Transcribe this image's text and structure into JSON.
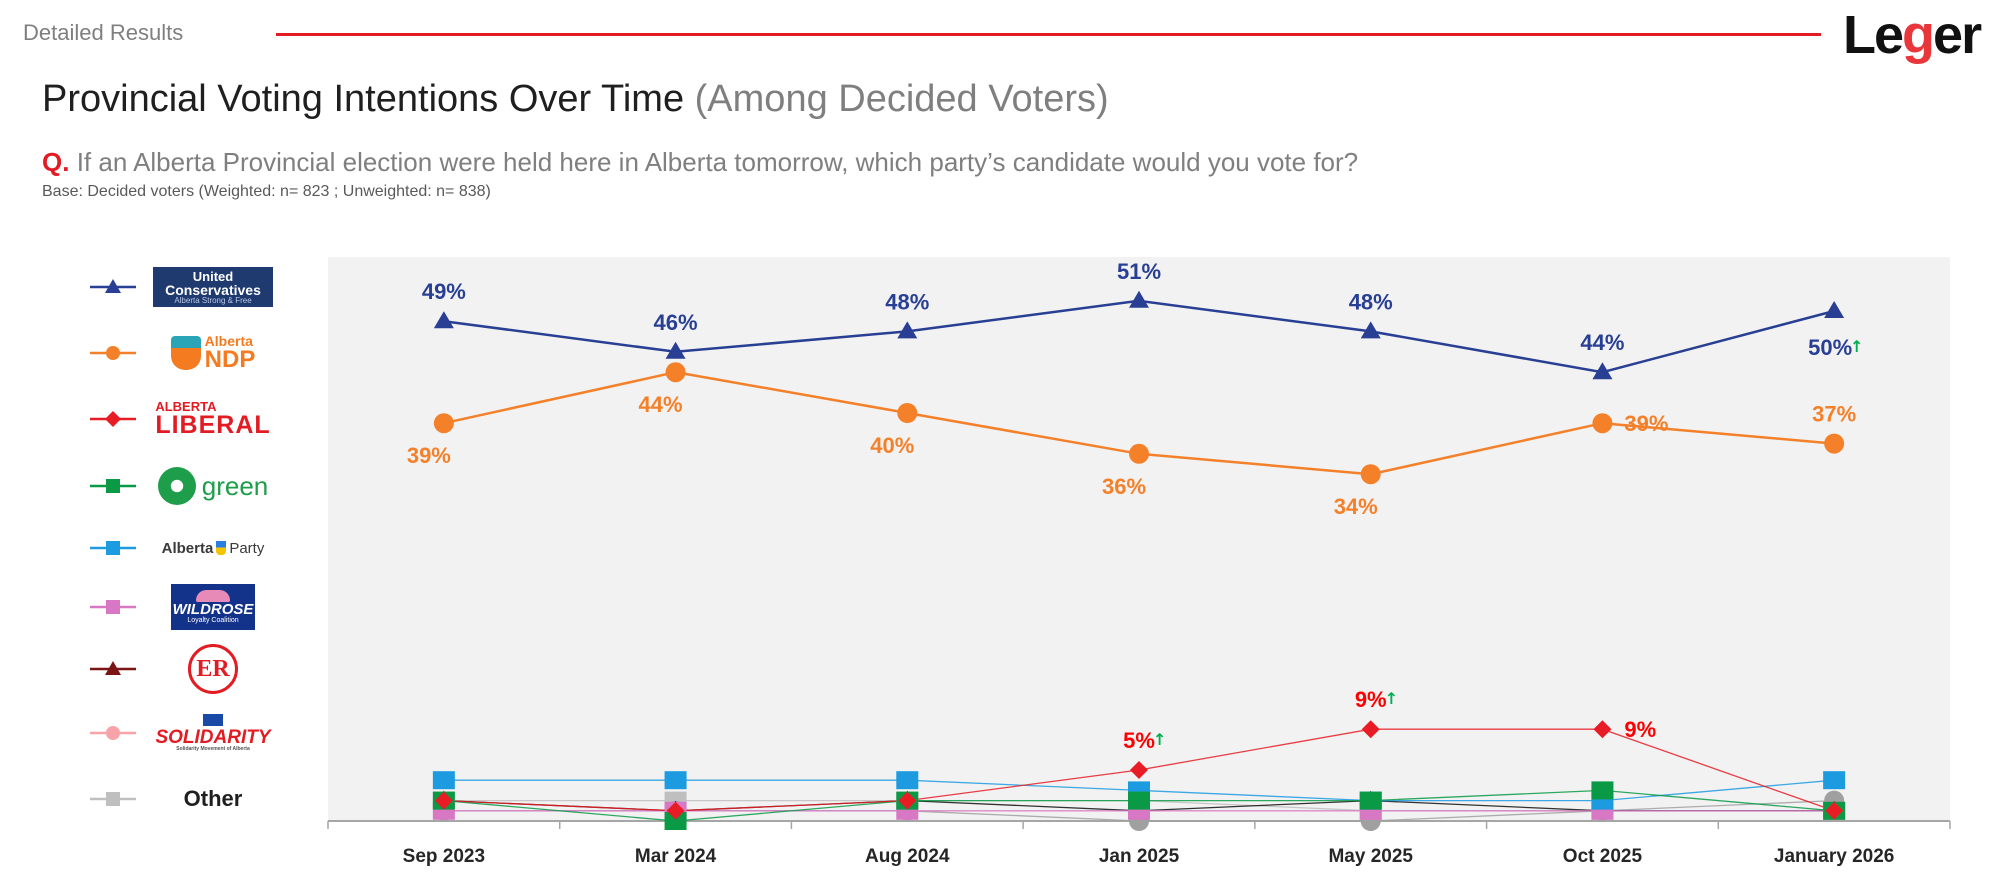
{
  "header": {
    "section_label": "Detailed Results",
    "brand": "Leger",
    "title_main": "Provincial Voting Intentions Over Time",
    "title_sub": "(Among Decided Voters)",
    "question_prefix": "Q.",
    "question_text": "If an Alberta Provincial election were held here in Alberta tomorrow, which party’s candidate would you vote for?",
    "base_text": "Base: Decided voters (Weighted: n= 823 ; Unweighted: n= 838)"
  },
  "legend": [
    {
      "id": "ucp",
      "name": "United Conservatives",
      "logo_lines": [
        "United",
        "Conservatives",
        "Alberta Strong & Free"
      ],
      "marker": "triangle",
      "color": "#283f94"
    },
    {
      "id": "ndp",
      "name": "Alberta NDP",
      "logo_lines": [
        "Alberta",
        "NDP"
      ],
      "marker": "circle",
      "color": "#f4802a"
    },
    {
      "id": "liberal",
      "name": "Alberta Liberal",
      "logo_lines": [
        "ALBERTA",
        "LIBERAL"
      ],
      "marker": "diamond",
      "color": "#e81c24"
    },
    {
      "id": "green",
      "name": "Green Party of Alberta",
      "logo_lines": [
        "green"
      ],
      "marker": "square",
      "color": "#0a9a46"
    },
    {
      "id": "alberta_party",
      "name": "Alberta Party",
      "logo_lines": [
        "Alberta",
        "Party"
      ],
      "marker": "square",
      "color": "#1d9be0"
    },
    {
      "id": "wildrose",
      "name": "Wildrose Loyalty Coalition",
      "logo_lines": [
        "WILDROSE",
        "Loyalty Coalition"
      ],
      "marker": "square",
      "color": "#d877c4"
    },
    {
      "id": "republican",
      "name": "Republican Party",
      "logo_lines": [
        "ER"
      ],
      "marker": "triangle",
      "color": "#7b1414"
    },
    {
      "id": "solidarity",
      "name": "Solidarity Movement of Alberta",
      "logo_lines": [
        "SOLIDARITY",
        "Solidarity Movement of Alberta"
      ],
      "marker": "circle",
      "color": "#f7a3a8"
    },
    {
      "id": "other",
      "name": "Other",
      "logo_lines": [
        "Other"
      ],
      "marker": "square",
      "color": "#bfbfbf"
    }
  ],
  "chart_data": {
    "type": "line",
    "title": "Provincial Voting Intentions Over Time (Among Decided Voters)",
    "xlabel": "",
    "ylabel": "",
    "ylim": [
      0,
      55
    ],
    "unit": "%",
    "grid": false,
    "legend_position": "left",
    "categories": [
      "Sep 2023",
      "Mar 2024",
      "Aug 2024",
      "Jan 2025",
      "May 2025",
      "Oct 2025",
      "January 2026"
    ],
    "series": [
      {
        "id": "ucp",
        "name": "United Conservatives",
        "color": "#283f94",
        "marker": "triangle",
        "values": [
          49,
          46,
          48,
          51,
          48,
          44,
          50
        ],
        "labels": [
          "49%",
          "46%",
          "48%",
          "51%",
          "48%",
          "44%",
          "50%"
        ],
        "label_pos": [
          "above",
          "above",
          "above",
          "above",
          "above",
          "above",
          "below"
        ],
        "up_arrows": [
          false,
          false,
          false,
          false,
          false,
          false,
          true
        ]
      },
      {
        "id": "ndp",
        "name": "Alberta NDP",
        "color": "#f4802a",
        "marker": "circle",
        "values": [
          39,
          44,
          40,
          36,
          34,
          39,
          37
        ],
        "labels": [
          "39%",
          "44%",
          "40%",
          "36%",
          "34%",
          "39%",
          "37%"
        ],
        "label_pos": [
          "below",
          "below",
          "below",
          "below",
          "below",
          "right",
          "above"
        ],
        "up_arrows": [
          false,
          false,
          false,
          false,
          false,
          false,
          false
        ]
      },
      {
        "id": "liberal",
        "name": "Alberta Liberal",
        "color": "#e81c24",
        "marker": "diamond",
        "values": [
          2,
          1,
          2,
          5,
          9,
          9,
          1
        ],
        "labels": [
          null,
          null,
          null,
          "5%",
          "9%",
          "9%",
          null
        ],
        "label_pos": [
          null,
          null,
          null,
          "above",
          "above",
          "right",
          null
        ],
        "up_arrows": [
          false,
          false,
          false,
          true,
          true,
          false,
          false
        ]
      },
      {
        "id": "green",
        "name": "Green Party of Alberta",
        "color": "#0a9a46",
        "marker": "square",
        "values": [
          2,
          0,
          2,
          2,
          2,
          3,
          1
        ]
      },
      {
        "id": "alberta_party",
        "name": "Alberta Party",
        "color": "#1d9be0",
        "marker": "square",
        "values": [
          4,
          4,
          4,
          3,
          2,
          2,
          4
        ]
      },
      {
        "id": "wildrose",
        "name": "Wildrose Loyalty Coalition",
        "color": "#d877c4",
        "marker": "square",
        "values": [
          1,
          1,
          1,
          1,
          1,
          1,
          1
        ]
      },
      {
        "id": "republican",
        "name": "Republican Party",
        "color": "#111111",
        "marker": "triangle",
        "values": [
          2,
          1,
          2,
          1,
          2,
          1,
          1
        ]
      },
      {
        "id": "solidarity",
        "name": "Solidarity Movement of Alberta",
        "color": "#a0a0a0",
        "marker": "circle",
        "values": [
          1,
          1,
          1,
          0,
          0,
          1,
          2
        ]
      },
      {
        "id": "other",
        "name": "Other",
        "color": "#bfbfbf",
        "marker": "square",
        "values": [
          2,
          2,
          2,
          2,
          1,
          1,
          1
        ]
      }
    ]
  }
}
